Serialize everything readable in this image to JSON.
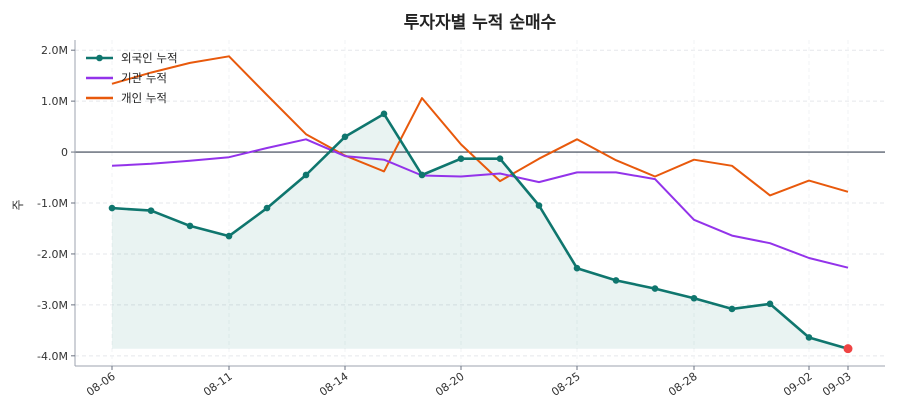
{
  "chart_data": {
    "type": "line",
    "title": "투자자별 누적 순매수",
    "xlabel": "",
    "ylabel": "주",
    "x": [
      "08-06",
      "08-07",
      "08-08",
      "08-11",
      "08-12",
      "08-13",
      "08-14",
      "08-18",
      "08-19",
      "08-20",
      "08-21",
      "08-22",
      "08-25",
      "08-26",
      "08-27",
      "08-28",
      "08-29",
      "09-01",
      "09-02",
      "09-03"
    ],
    "x_tick_labels": [
      "08-06",
      "08-11",
      "08-14",
      "08-20",
      "08-25",
      "08-28",
      "09-02",
      "09-03"
    ],
    "y_tick_labels": [
      "2.0M",
      "1.0M",
      "0",
      "-1.0M",
      "-2.0M",
      "-3.0M",
      "-4.0M"
    ],
    "y_ticks": [
      2000000,
      1000000,
      0,
      -1000000,
      -2000000,
      -3000000,
      -4000000
    ],
    "ylim": [
      -4200000,
      2200000
    ],
    "grid": true,
    "legend": "top-left",
    "series": [
      {
        "name": "외국인 누적",
        "color": "#0f766e",
        "markers": true,
        "fill": true,
        "values": [
          -1100000,
          -1150000,
          -1450000,
          -1650000,
          -1100000,
          -450000,
          300000,
          750000,
          -450000,
          -130000,
          -130000,
          -1050000,
          -2280000,
          -2520000,
          -2680000,
          -2870000,
          -3080000,
          -2980000,
          -3640000,
          -3860000
        ]
      },
      {
        "name": "기관 누적",
        "color": "#9333ea",
        "markers": false,
        "fill": false,
        "values": [
          -270000,
          -230000,
          -170000,
          -100000,
          80000,
          250000,
          -80000,
          -150000,
          -460000,
          -480000,
          -420000,
          -590000,
          -400000,
          -400000,
          -530000,
          -1330000,
          -1640000,
          -1790000,
          -2080000,
          -2270000
        ]
      },
      {
        "name": "개인 누적",
        "color": "#e8590c",
        "markers": false,
        "fill": false,
        "values": [
          1340000,
          1560000,
          1750000,
          1880000,
          1120000,
          350000,
          -70000,
          -380000,
          1060000,
          150000,
          -570000,
          -130000,
          250000,
          -160000,
          -480000,
          -150000,
          -270000,
          -850000,
          -560000,
          -780000
        ]
      }
    ],
    "highlight_last_point_color": "#ef4444"
  }
}
